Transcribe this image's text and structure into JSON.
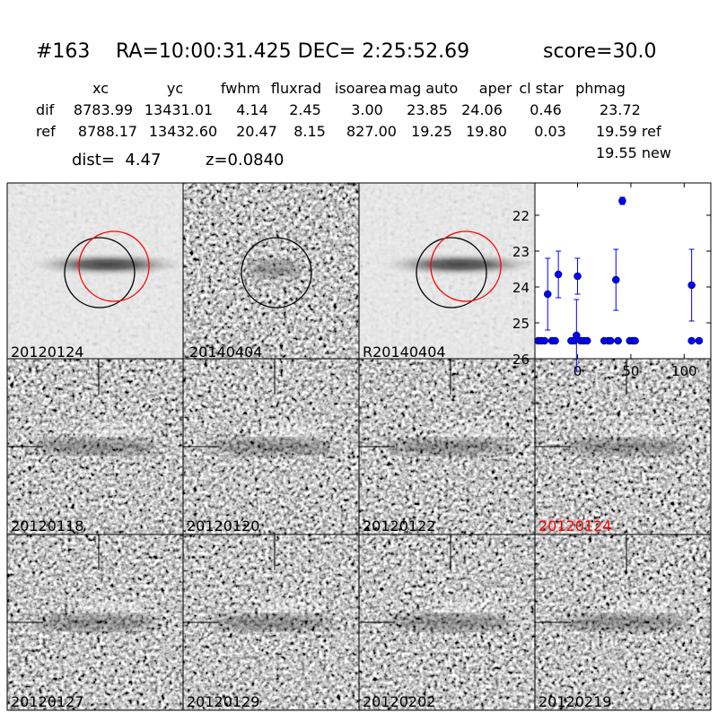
{
  "header": {
    "id": "#163",
    "coords": "RA=10:00:31.425 DEC= 2:25:52.69",
    "score": "score=30.0"
  },
  "table": {
    "columns": [
      "xc",
      "yc",
      "fwhm",
      "fluxrad",
      "isoarea",
      "mag auto",
      "aper",
      "cl star",
      "phmag"
    ],
    "rows": [
      [
        "dif",
        "8783.99",
        "13431.01",
        "4.14",
        "2.45",
        "3.00",
        "23.85",
        "24.06",
        "0.46",
        "23.72"
      ],
      [
        "ref",
        "8788.17",
        "13432.60",
        "20.47",
        "8.15",
        "827.00",
        "19.25",
        "19.80",
        "0.03",
        "19.59 ref"
      ]
    ],
    "phmag_new": "19.55 new"
  },
  "dist": "dist=  4.47",
  "z": "z=0.0840",
  "stamps": [
    "20120124",
    "20140404",
    "R20140404"
  ],
  "cutouts": [
    {
      "label": "20120118",
      "color": "#000000"
    },
    {
      "label": "20120120",
      "color": "#000000"
    },
    {
      "label": "20120122",
      "color": "#000000"
    },
    {
      "label": "20120124",
      "color": "#ff0000"
    },
    {
      "label": "20120127",
      "color": "#000000"
    },
    {
      "label": "20120129",
      "color": "#000000"
    },
    {
      "label": "20120202",
      "color": "#000000"
    },
    {
      "label": "20120219",
      "color": "#000000"
    }
  ],
  "chart_data": {
    "type": "scatter",
    "color": "#0000ff",
    "x": [
      -37,
      -34,
      -31,
      -28,
      -24,
      -21,
      -18,
      -6,
      -3,
      -1,
      0,
      3,
      6,
      9,
      25,
      29,
      31,
      36,
      38,
      42,
      49,
      52,
      54,
      107,
      107,
      114
    ],
    "values": [
      25.5,
      25.5,
      25.5,
      24.2,
      25.5,
      25.5,
      23.65,
      25.5,
      25.5,
      25.35,
      23.7,
      25.5,
      25.5,
      25.5,
      25.5,
      25.5,
      25.5,
      23.8,
      25.5,
      21.6,
      25.5,
      25.5,
      25.5,
      23.95,
      25.5,
      25.5
    ],
    "errors": [
      null,
      null,
      null,
      1.0,
      null,
      null,
      0.65,
      null,
      null,
      1.0,
      0.5,
      null,
      null,
      null,
      null,
      null,
      null,
      0.85,
      null,
      0.1,
      null,
      null,
      null,
      1.0,
      null,
      null
    ],
    "xlim": [
      -40,
      125
    ],
    "ylim": [
      26,
      21.1
    ],
    "xticks": [
      0,
      50,
      100
    ],
    "yticks": [
      22,
      23,
      24,
      25,
      26
    ]
  }
}
